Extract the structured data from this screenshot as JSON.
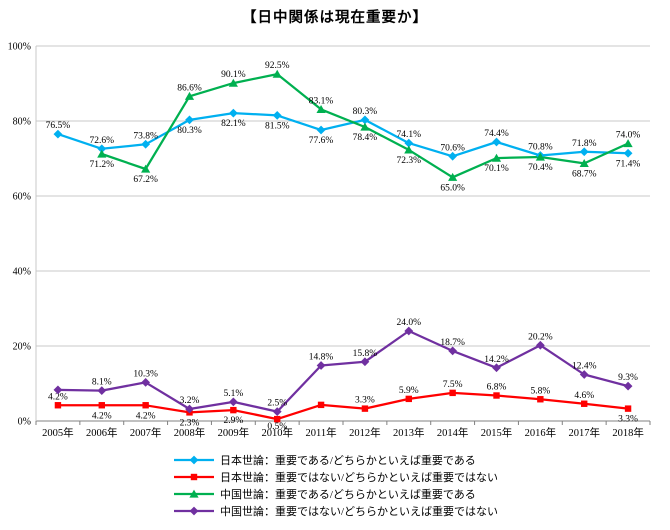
{
  "title": "【日中関係は現在重要か】",
  "chart_data": {
    "type": "line",
    "title": "【日中関係は現在重要か】",
    "xlabel": "",
    "ylabel": "",
    "ylim": [
      0,
      100
    ],
    "grid": true,
    "legend_position": "bottom",
    "categories": [
      "2005年",
      "2006年",
      "2007年",
      "2008年",
      "2009年",
      "2010年",
      "2011年",
      "2012年",
      "2013年",
      "2014年",
      "2015年",
      "2016年",
      "2017年",
      "2018年"
    ],
    "y_axis": {
      "min": 0,
      "max": 100,
      "step": 20,
      "tick_labels": [
        "0%",
        "20%",
        "40%",
        "60%",
        "80%",
        "100%"
      ]
    },
    "series": [
      {
        "name": "日本世論：重要である/どちらかといえば重要である",
        "color": "#00B0F0",
        "marker": "diamond",
        "values": [
          76.5,
          72.6,
          73.8,
          80.3,
          82.1,
          81.5,
          77.6,
          80.3,
          74.1,
          70.6,
          74.4,
          70.8,
          71.8,
          71.4
        ],
        "labels": [
          "76.5%",
          "72.6%",
          "73.8%",
          "80.3%",
          "82.1%",
          "81.5%",
          "77.6%",
          "80.3%",
          "74.1%",
          "70.6%",
          "74.4%",
          "70.8%",
          "71.8%",
          "71.4%"
        ],
        "label_side": [
          "above",
          "above",
          "above",
          "below",
          "below",
          "below",
          "below",
          "above",
          "above",
          "above",
          "above",
          "above",
          "above",
          "below"
        ]
      },
      {
        "name": "日本世論：重要ではない/どちらかといえば重要ではない",
        "color": "#FF0000",
        "marker": "square",
        "values": [
          4.2,
          4.2,
          4.2,
          2.3,
          2.9,
          0.5,
          4.3,
          3.3,
          5.9,
          7.5,
          6.8,
          5.8,
          4.6,
          3.3
        ],
        "labels": [
          "4.2%",
          "4.2%",
          "4.2%",
          "2.3%",
          "2.9%",
          "0.5%",
          "",
          "3.3%",
          "5.9%",
          "7.5%",
          "6.8%",
          "5.8%",
          "4.6%",
          "3.3%"
        ],
        "label_side": [
          "above",
          "below",
          "below",
          "below",
          "below",
          "below",
          "below",
          "above",
          "above",
          "above",
          "above",
          "above",
          "above",
          "below"
        ]
      },
      {
        "name": "中国世論：重要である/どちらかといえば重要である",
        "color": "#00B050",
        "marker": "triangle",
        "values": [
          null,
          71.2,
          67.2,
          86.6,
          90.1,
          92.5,
          83.1,
          78.4,
          72.3,
          65.0,
          70.1,
          70.4,
          68.7,
          74.0
        ],
        "labels": [
          "",
          "71.2%",
          "67.2%",
          "86.6%",
          "90.1%",
          "92.5%",
          "83.1%",
          "78.4%",
          "72.3%",
          "65.0%",
          "70.1%",
          "70.4%",
          "68.7%",
          "74.0%"
        ],
        "label_side": [
          "above",
          "below",
          "below",
          "above",
          "above",
          "above",
          "above",
          "below",
          "below",
          "below",
          "below",
          "below",
          "below",
          "above"
        ]
      },
      {
        "name": "中国世論：重要ではない/どちらかといえば重要ではない",
        "color": "#7030A0",
        "marker": "diamond",
        "values": [
          8.3,
          8.1,
          10.3,
          3.2,
          5.1,
          2.5,
          14.8,
          15.8,
          24.0,
          18.7,
          14.2,
          20.2,
          12.4,
          9.3
        ],
        "labels": [
          "",
          "8.1%",
          "10.3%",
          "3.2%",
          "5.1%",
          "2.5%",
          "14.8%",
          "15.8%",
          "24.0%",
          "18.7%",
          "14.2%",
          "20.2%",
          "12.4%",
          "9.3%"
        ],
        "label_side": [
          "above",
          "above",
          "above",
          "above",
          "above",
          "above",
          "above",
          "above",
          "above",
          "above",
          "above",
          "above",
          "above",
          "above"
        ]
      }
    ]
  }
}
